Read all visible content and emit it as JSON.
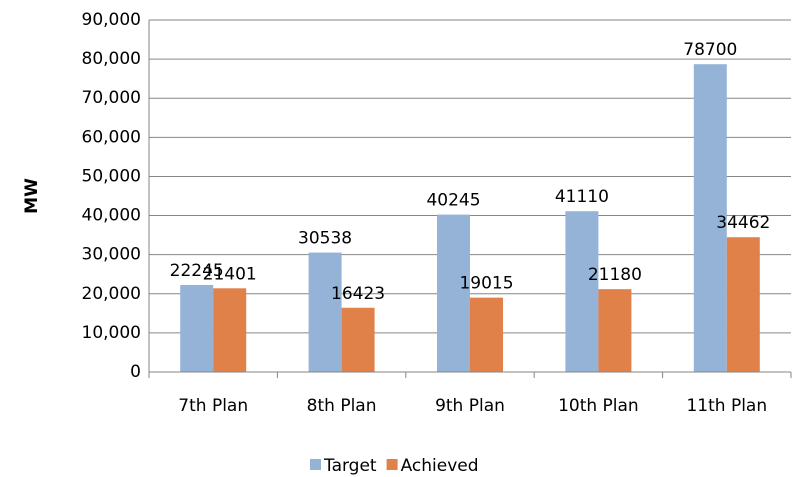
{
  "chart_data": {
    "type": "bar",
    "y_label": "MW",
    "categories": [
      "7th Plan",
      "8th Plan",
      "9th Plan",
      "10th Plan",
      "11th Plan"
    ],
    "series": [
      {
        "name": "Target",
        "color": "#95b3d7",
        "values": [
          22245,
          30538,
          40245,
          41110,
          78700
        ]
      },
      {
        "name": "Achieved",
        "color": "#e0814a",
        "values": [
          21401,
          16423,
          19015,
          21180,
          34462
        ]
      }
    ],
    "ylim": [
      0,
      90000
    ],
    "yticks": [
      0,
      {
        "value": 10000,
        "label": "10,000"
      },
      {
        "value": 20000,
        "label": "20,000"
      },
      {
        "value": 30000,
        "label": "30,000"
      },
      {
        "value": 40000,
        "label": "40,000"
      },
      {
        "value": 50000,
        "label": "50,000"
      },
      {
        "value": 60000,
        "label": "60,000"
      },
      {
        "value": 70000,
        "label": "70,000"
      },
      {
        "value": 80000,
        "label": "80,000"
      },
      {
        "value": 90000,
        "label": "90,000"
      }
    ],
    "grid": true,
    "legend": "bottom"
  }
}
